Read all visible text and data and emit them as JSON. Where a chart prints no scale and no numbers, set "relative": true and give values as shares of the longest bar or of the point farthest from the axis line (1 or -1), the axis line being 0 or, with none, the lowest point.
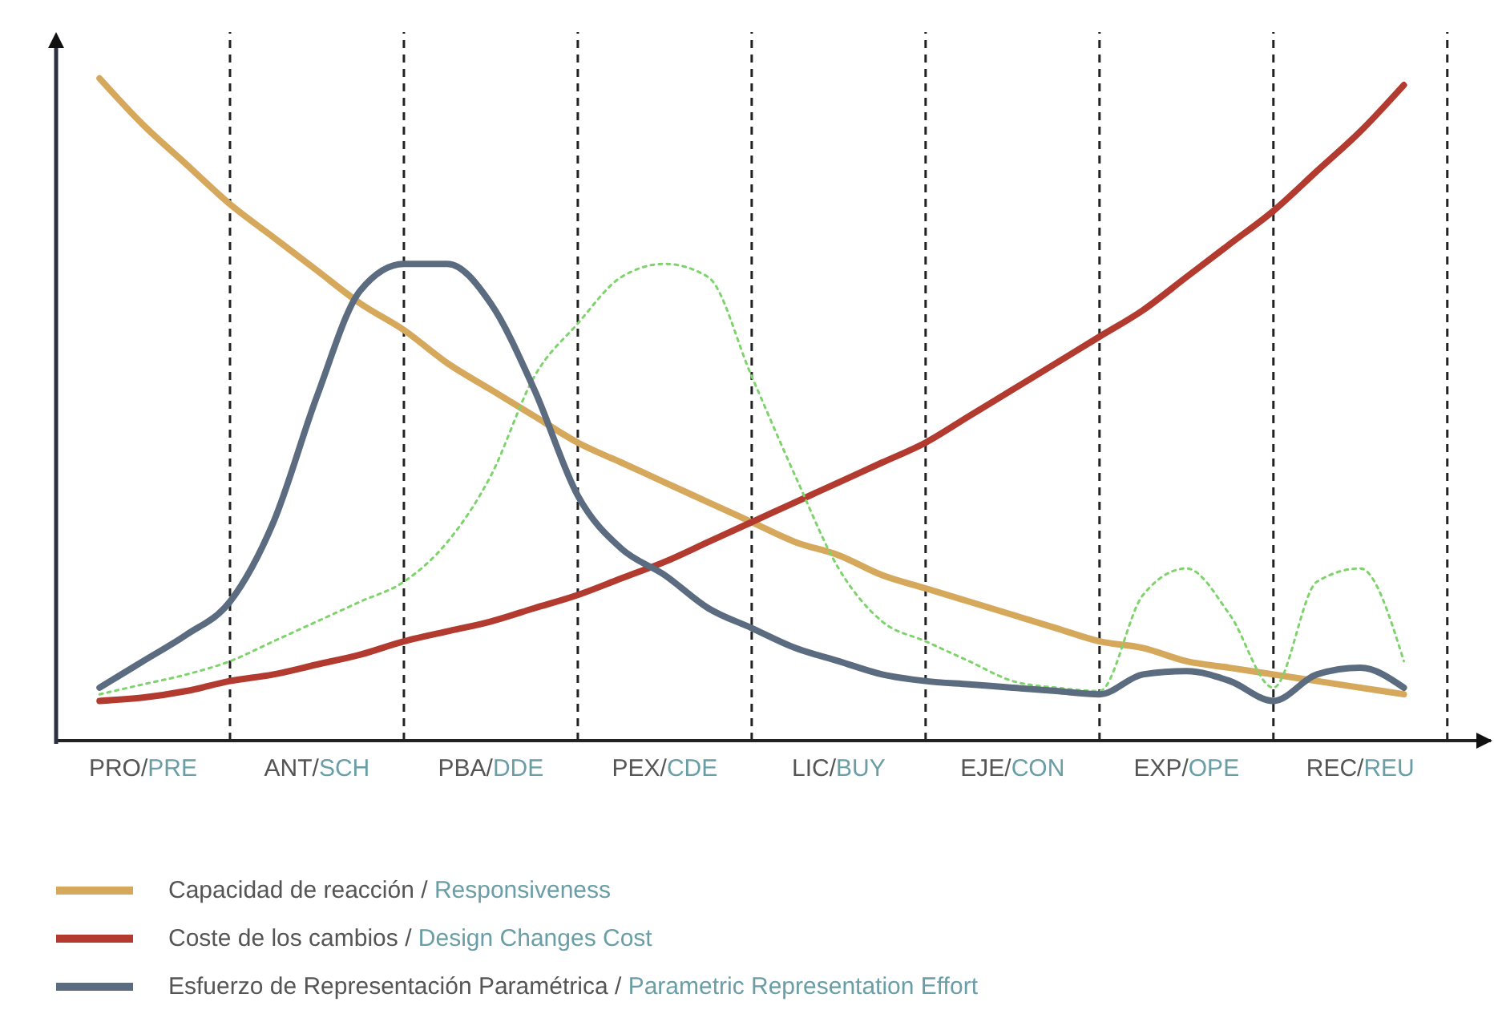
{
  "chart_data": {
    "type": "line",
    "relative": true,
    "grid": "x",
    "legend": "bottom left",
    "marker": "none",
    "categories": [
      null,
      "PRO/PRE",
      null,
      null,
      null,
      "ANT/SCH",
      null,
      null,
      null,
      "PBA/DDE",
      null,
      null,
      null,
      "PEX/CDE",
      null,
      null,
      null,
      "LIC/BUY",
      null,
      null,
      null,
      "EJE/CON",
      null,
      null,
      null,
      "EXP/OPE",
      null,
      null,
      null,
      "REC/REU",
      null
    ],
    "series": [
      {
        "name": "Capacidad de reacción / Responsiveness",
        "color": "#d6a85c",
        "line_style": "solid",
        "values": [
          1.0,
          0.93,
          0.87,
          0.81,
          0.76,
          0.71,
          0.66,
          0.62,
          0.57,
          0.53,
          0.49,
          0.45,
          0.42,
          0.39,
          0.36,
          0.33,
          0.3,
          0.28,
          0.25,
          0.23,
          0.21,
          0.19,
          0.17,
          0.15,
          0.14,
          0.12,
          0.11,
          0.1,
          0.09,
          0.08,
          0.07
        ]
      },
      {
        "name": "Coste de los cambios / Design Changes Cost",
        "color": "#b23a2e",
        "line_style": "solid",
        "values": [
          0.06,
          0.065,
          0.075,
          0.09,
          0.1,
          0.115,
          0.13,
          0.15,
          0.165,
          0.18,
          0.2,
          0.22,
          0.245,
          0.27,
          0.3,
          0.33,
          0.36,
          0.39,
          0.42,
          0.45,
          0.49,
          0.53,
          0.57,
          0.61,
          0.65,
          0.7,
          0.75,
          0.8,
          0.86,
          0.92,
          0.99
        ]
      },
      {
        "color": "#7dd46a",
        "line_style": "dotted",
        "values": [
          0.07,
          0.085,
          0.1,
          0.12,
          0.15,
          0.18,
          0.21,
          0.24,
          0.3,
          0.4,
          0.55,
          0.63,
          0.7,
          0.72,
          0.7,
          0.55,
          0.4,
          0.26,
          0.18,
          0.15,
          0.12,
          0.09,
          0.08,
          0.075,
          0.22,
          0.26,
          0.19,
          0.08,
          0.24,
          0.26,
          0.12
        ]
      },
      {
        "name": "Esfuerzo de Representación Paramétrica / Parametric Representation Effort",
        "color": "#5b6b80",
        "line_style": "solid",
        "values": [
          0.08,
          0.12,
          0.16,
          0.21,
          0.33,
          0.52,
          0.68,
          0.72,
          0.72,
          0.66,
          0.53,
          0.37,
          0.29,
          0.25,
          0.2,
          0.17,
          0.14,
          0.12,
          0.1,
          0.09,
          0.085,
          0.08,
          0.075,
          0.07,
          0.1,
          0.105,
          0.09,
          0.06,
          0.1,
          0.11,
          0.08
        ]
      }
    ]
  }
}
